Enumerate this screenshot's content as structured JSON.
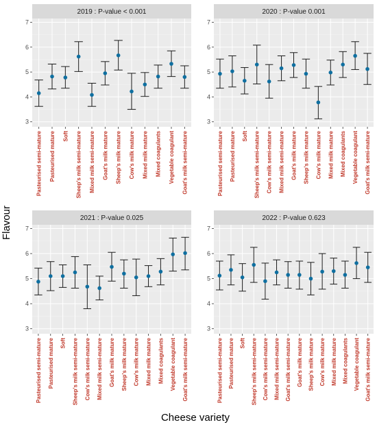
{
  "chart_data": {
    "type": "scatter",
    "xlabel": "Cheese variety",
    "ylabel": "Flavour",
    "ylim": [
      2.8,
      7.15
    ],
    "yticks": [
      3,
      4,
      5,
      6,
      7
    ],
    "grid": true,
    "colors": {
      "point": "#0f6fa0",
      "errorbar": "#1a1a1a",
      "tick_label": "#c0392b",
      "panel_bg": "#ebebeb",
      "strip_bg": "#d9d9d9"
    },
    "panels": [
      {
        "title": "2019 : P-value  < 0.001",
        "categories": [
          "Pasteurised semi-mature",
          "Pasteurised mature",
          "Soft",
          "Sheep's milk semi-mature",
          "Mixed milk semi-mature",
          "Goat's milk mature",
          "Sheep's milk mature",
          "Cow's milk mature",
          "Mixed milk mature",
          "Mixed coagulants",
          "Vegetable coagulant",
          "Goat's milk semi-mature"
        ],
        "mean": [
          4.15,
          4.82,
          4.78,
          5.62,
          4.08,
          4.95,
          5.67,
          4.22,
          4.5,
          4.82,
          5.33,
          4.8
        ],
        "lower": [
          3.62,
          4.32,
          4.35,
          5.02,
          3.62,
          4.48,
          5.08,
          3.5,
          4.02,
          4.35,
          4.82,
          4.35
        ],
        "upper": [
          4.68,
          5.32,
          5.22,
          6.22,
          4.55,
          5.42,
          6.27,
          4.95,
          4.98,
          5.28,
          5.85,
          5.25
        ]
      },
      {
        "title": "2020 : P-value  0.001",
        "categories": [
          "Pasteurised semi-mature",
          "Pasteurised mature",
          "Soft",
          "Sheep's milk semi-mature",
          "Cow's milk semi-mature",
          "Mixed milk semi-mature",
          "Goat's milk mature",
          "Sheep's milk mature",
          "Cow's milk mature",
          "Mixed milk mature",
          "Mixed coagulants",
          "Vegetable coagulant",
          "Goat's milk semi-mature"
        ],
        "mean": [
          4.93,
          5.03,
          4.65,
          5.3,
          4.62,
          5.15,
          5.28,
          4.93,
          3.78,
          4.98,
          5.3,
          5.65,
          5.12
        ],
        "lower": [
          4.35,
          4.4,
          4.12,
          4.52,
          3.95,
          4.65,
          4.78,
          4.35,
          3.12,
          4.48,
          4.78,
          5.1,
          4.5
        ],
        "upper": [
          5.52,
          5.65,
          5.18,
          6.08,
          5.3,
          5.65,
          5.78,
          5.52,
          4.42,
          5.48,
          5.82,
          6.22,
          5.75
        ]
      },
      {
        "title": "2021 : P-value  0.025",
        "categories": [
          "Pasteurised semi-mature",
          "Pasteurised mature",
          "Soft",
          "Sheep's milk semi-mature",
          "Cow's milk semi-mature",
          "Mixed milk semi-mature",
          "Goat's milk mature",
          "Sheep's milk mature",
          "Cow's milk mature",
          "Mixed milk mature",
          "Mixed coagulants",
          "Vegetable coagulant",
          "Goat's milk semi-mature"
        ],
        "mean": [
          4.88,
          5.1,
          5.1,
          5.25,
          4.68,
          4.62,
          5.47,
          5.2,
          5.05,
          5.1,
          5.28,
          5.97,
          6.02
        ],
        "lower": [
          4.35,
          4.52,
          4.65,
          4.62,
          3.8,
          4.15,
          4.9,
          4.62,
          4.32,
          4.68,
          4.75,
          5.3,
          5.35
        ],
        "upper": [
          5.42,
          5.68,
          5.55,
          5.88,
          5.55,
          5.1,
          6.05,
          5.75,
          5.78,
          5.52,
          5.8,
          6.62,
          6.65
        ]
      },
      {
        "title": "2022 : P-value  0.623",
        "categories": [
          "Pasteurised semi-mature",
          "Pasteurised mature",
          "Soft",
          "Sheep's milk semi-mature",
          "Cow's milk semi-mature",
          "Mixed milk semi-mature",
          "Goat's milk semi-mature",
          "Goat's milk mature",
          "Sheep's milk mature",
          "Cow's milk mature",
          "Mixed milk mature",
          "Mixed coagulants",
          "Vegetable coagulant",
          "Goat's milk semi-mature"
        ],
        "mean": [
          5.12,
          5.35,
          5.05,
          5.55,
          4.9,
          5.25,
          5.15,
          5.15,
          5.0,
          5.28,
          5.3,
          5.15,
          5.62,
          5.45
        ],
        "lower": [
          4.55,
          4.75,
          4.5,
          4.85,
          4.18,
          4.75,
          4.62,
          4.58,
          4.35,
          4.58,
          4.78,
          4.62,
          5.0,
          4.85
        ],
        "upper": [
          5.7,
          5.95,
          5.6,
          6.25,
          5.62,
          5.75,
          5.68,
          5.7,
          5.65,
          6.0,
          5.82,
          5.7,
          6.25,
          6.05
        ]
      }
    ]
  }
}
